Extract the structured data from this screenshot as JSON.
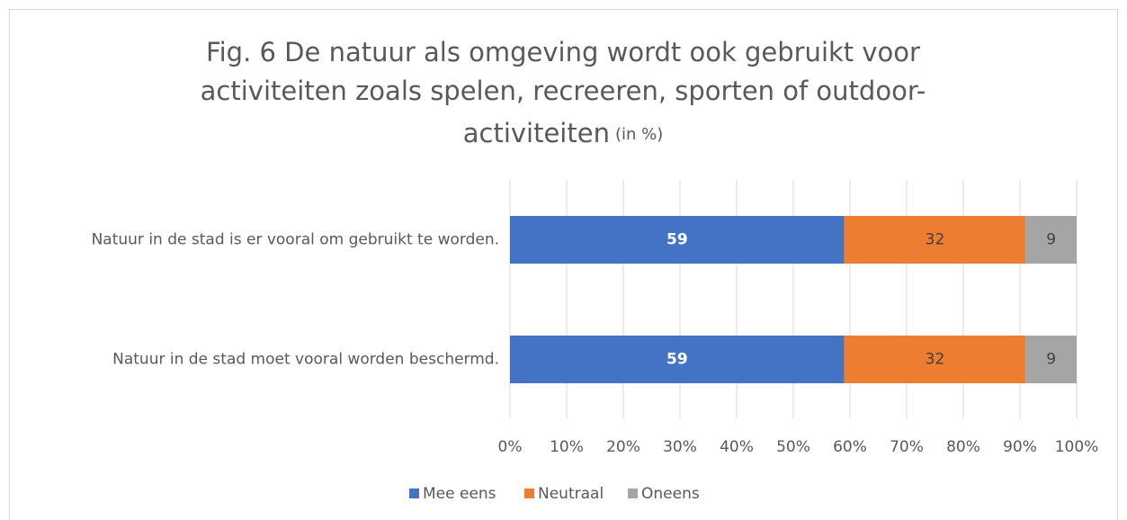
{
  "chart_data": {
    "type": "stacked-bar-horizontal",
    "title_lines": [
      "Fig. 6 De natuur als omgeving wordt ook gebruikt voor",
      "activiteiten zoals spelen, recreeren, sporten of outdoor-",
      "activiteiten"
    ],
    "title_suffix": "(in %)",
    "categories": [
      "Natuur in de stad is er vooral om gebruikt te worden.",
      "Natuur in de stad moet vooral worden beschermd."
    ],
    "series": [
      {
        "name": "Mee eens",
        "color": "#4472c4",
        "values": [
          59,
          59
        ]
      },
      {
        "name": "Neutraal",
        "color": "#ed7d31",
        "values": [
          32,
          32
        ]
      },
      {
        "name": "Oneens",
        "color": "#a5a5a5",
        "values": [
          9,
          9
        ]
      }
    ],
    "xlim": [
      0,
      100
    ],
    "xticks": [
      {
        "value": 0,
        "label": "0%"
      },
      {
        "value": 10,
        "label": "10%"
      },
      {
        "value": 20,
        "label": "20%"
      },
      {
        "value": 30,
        "label": "30%"
      },
      {
        "value": 40,
        "label": "40%"
      },
      {
        "value": 50,
        "label": "50%"
      },
      {
        "value": 60,
        "label": "60%"
      },
      {
        "value": 70,
        "label": "70%"
      },
      {
        "value": 80,
        "label": "80%"
      },
      {
        "value": 90,
        "label": "90%"
      },
      {
        "value": 100,
        "label": "100%"
      }
    ],
    "grid": true,
    "legend": "bottom"
  }
}
